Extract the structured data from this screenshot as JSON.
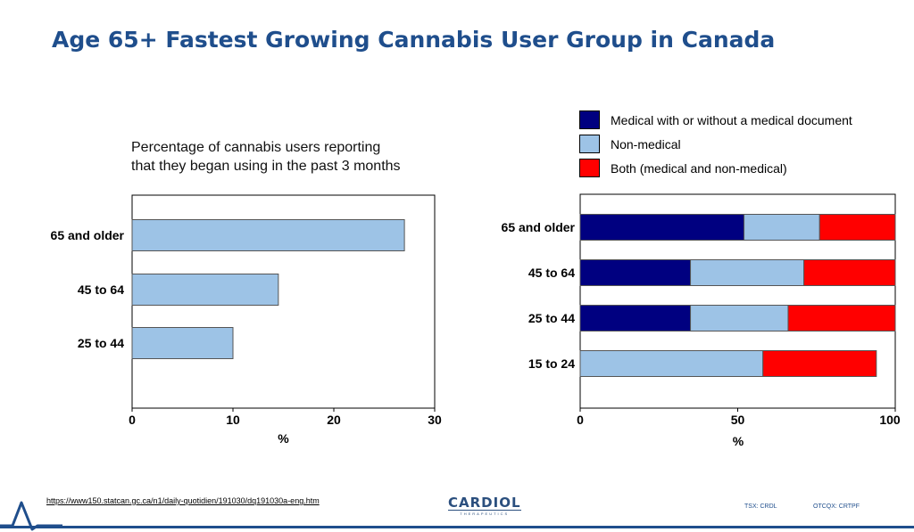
{
  "slide": {
    "title": "Age 65+ Fastest Growing Cannabis User Group in Canada",
    "source_url": "https://www150.statcan.gc.ca/n1/daily-quotidien/191030/dq191030a-eng.htm",
    "logo_name": "CARDIOL",
    "logo_sub": "THERAPEUTICS",
    "ticker_tsx": "TSX: CRDL",
    "ticker_otcqx": "OTCQX: CRTPF",
    "brand_color": "#1F4E8C"
  },
  "chart_data": [
    {
      "type": "bar",
      "orientation": "horizontal",
      "title": "Percentage of cannabis users reporting that they began using in the past 3 months",
      "title_lines": [
        "Percentage of cannabis users reporting",
        "that they began using in the past 3 months"
      ],
      "categories": [
        "65 and older",
        "45 to 64",
        "25 to 44"
      ],
      "values": [
        27,
        14.5,
        10
      ],
      "xlabel": "%",
      "xlim": [
        0,
        30
      ],
      "xticks": [
        0,
        10,
        20,
        30
      ],
      "bar_color": "#9DC3E6",
      "grid": false
    },
    {
      "type": "bar",
      "orientation": "horizontal",
      "stacked": true,
      "categories": [
        "65 and older",
        "45 to 64",
        "25 to 44",
        "15 to 24"
      ],
      "series": [
        {
          "name": "Medical with or without a medical document",
          "color": "#000080",
          "values": [
            52,
            35,
            35,
            0
          ]
        },
        {
          "name": "Non-medical",
          "color": "#9DC3E6",
          "values": [
            24,
            36,
            31,
            58
          ]
        },
        {
          "name": "Both (medical and non-medical)",
          "color": "#FF0000",
          "values": [
            24,
            29,
            34,
            36
          ]
        }
      ],
      "xlabel": "%",
      "xlim": [
        0,
        100
      ],
      "xticks": [
        0,
        50,
        100
      ],
      "legend": "top-right",
      "grid": false
    }
  ]
}
